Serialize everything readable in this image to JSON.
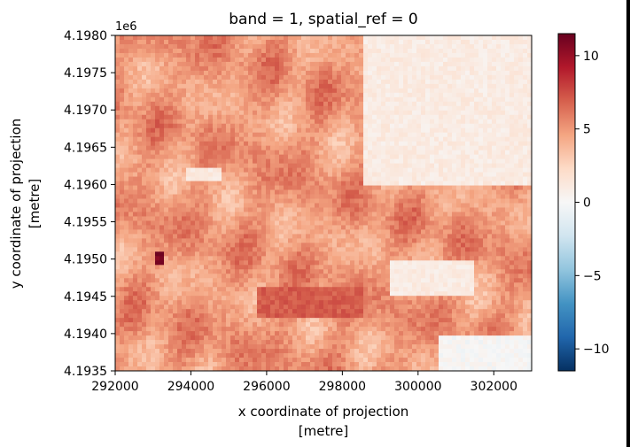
{
  "chart_data": {
    "type": "heatmap",
    "title": "band = 1, spatial_ref = 0",
    "xlabel": [
      "x coordinate of projection",
      "[metre]"
    ],
    "ylabel": [
      "y coordinate of projection",
      "[metre]"
    ],
    "x_ticks": [
      "292000",
      "294000",
      "296000",
      "298000",
      "300000",
      "302000"
    ],
    "x_tick_values": [
      292000,
      294000,
      296000,
      298000,
      300000,
      302000
    ],
    "xlim": [
      292000,
      303000
    ],
    "y_ticks": [
      "4.1935",
      "4.1940",
      "4.1945",
      "4.1950",
      "4.1955",
      "4.1960",
      "4.1965",
      "4.1970",
      "4.1975",
      "4.1980"
    ],
    "y_tick_values": [
      4.1935,
      4.194,
      4.1945,
      4.195,
      4.1955,
      4.196,
      4.1965,
      4.197,
      4.1975,
      4.198
    ],
    "ylim": [
      4.1935,
      4.198
    ],
    "y_offset_label": "1e6",
    "colorbar": {
      "colormap": "RdBu_r",
      "range": [
        -11.5,
        11.5
      ],
      "ticks": [
        "10",
        "5",
        "0",
        "−5",
        "−10"
      ],
      "tick_values": [
        10,
        5,
        0,
        -5,
        -10
      ]
    },
    "notable_features": [
      {
        "description": "light (near 0) region",
        "x": [
          298500,
          303000
        ],
        "y": [
          4.196,
          4.198
        ],
        "value": 1
      },
      {
        "description": "light (near 0) region",
        "x": [
          300500,
          303000
        ],
        "y": [
          4.1935,
          4.194
        ],
        "value": 0
      },
      {
        "description": "light spot",
        "x": [
          293900,
          294800
        ],
        "y": [
          4.19605,
          4.19625
        ],
        "value": 1
      },
      {
        "description": "light patch",
        "x": [
          299300,
          301500
        ],
        "y": [
          4.1945,
          4.195
        ],
        "value": 1
      },
      {
        "description": "dark (high) spot",
        "x": [
          293100,
          293300
        ],
        "y": [
          4.1949,
          4.1951
        ],
        "value": 11
      },
      {
        "description": "darker band",
        "x": [
          295800,
          298500
        ],
        "y": [
          4.1942,
          4.1946
        ],
        "value": 7
      }
    ],
    "typical_value": 5
  }
}
